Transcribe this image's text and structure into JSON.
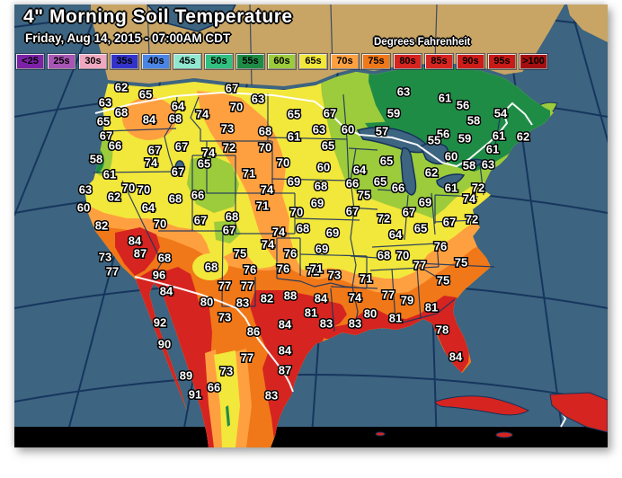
{
  "header": {
    "title": "4\" Morning Soil Temperature",
    "date": "Friday, Aug 14, 2015 - 07:00AM CDT",
    "unit_label": "Degrees Fahrenheit"
  },
  "legend": {
    "items": [
      {
        "label": "<25",
        "color": "#7D22A8"
      },
      {
        "label": "25s",
        "color": "#A855B5"
      },
      {
        "label": "30s",
        "color": "#F0A8C0"
      },
      {
        "label": "35s",
        "color": "#3333CC"
      },
      {
        "label": "40s",
        "color": "#4A85E6"
      },
      {
        "label": "45s",
        "color": "#90E8D0"
      },
      {
        "label": "50s",
        "color": "#30C080"
      },
      {
        "label": "55s",
        "color": "#1F8C46"
      },
      {
        "label": "60s",
        "color": "#9CCB3B"
      },
      {
        "label": "65s",
        "color": "#F2E73B"
      },
      {
        "label": "70s",
        "color": "#FFA040"
      },
      {
        "label": "75s",
        "color": "#F07818"
      },
      {
        "label": "80s",
        "color": "#D62420"
      },
      {
        "label": "85s",
        "color": "#D62420"
      },
      {
        "label": "90s",
        "color": "#CE1D19"
      },
      {
        "label": "95s",
        "color": "#C81A16"
      },
      {
        "label": ">100",
        "color": "#A50F0F"
      }
    ]
  },
  "colors": {
    "ocean": "#3D6480",
    "graticule": "#16365E",
    "edge_black": "#000000",
    "land_no_data": "#C8A565",
    "state_border": "#1B3460",
    "national_border": "#FFFFFF",
    "lake_outline": "#14325A",
    "band_55s": "#1F8C46",
    "band_60s": "#9CCB3B",
    "band_65s": "#F2E73B",
    "band_70s": "#FFA040",
    "band_75s": "#F07818",
    "band_80s": "#D62420"
  },
  "chart_data": {
    "type": "map-stations",
    "title": "4\" Morning Soil Temperature",
    "units": "Degrees Fahrenheit",
    "stations_t_x_y": [
      [
        62,
        119,
        93
      ],
      [
        65,
        146,
        101
      ],
      [
        63,
        101,
        110
      ],
      [
        68,
        119,
        121
      ],
      [
        84,
        150,
        129
      ],
      [
        65,
        99,
        131
      ],
      [
        67,
        102,
        147
      ],
      [
        66,
        112,
        158
      ],
      [
        58,
        91,
        173
      ],
      [
        61,
        106,
        190
      ],
      [
        63,
        79,
        207
      ],
      [
        60,
        77,
        227
      ],
      [
        70,
        127,
        205
      ],
      [
        70,
        144,
        207
      ],
      [
        62,
        111,
        215
      ],
      [
        82,
        97,
        247
      ],
      [
        64,
        149,
        227
      ],
      [
        66,
        204,
        213
      ],
      [
        68,
        179,
        217
      ],
      [
        74,
        152,
        177
      ],
      [
        67,
        156,
        163
      ],
      [
        67,
        186,
        159
      ],
      [
        67,
        182,
        187
      ],
      [
        65,
        211,
        178
      ],
      [
        84,
        134,
        264
      ],
      [
        87,
        140,
        278
      ],
      [
        73,
        101,
        282
      ],
      [
        77,
        109,
        298
      ],
      [
        68,
        167,
        283
      ],
      [
        96,
        161,
        302
      ],
      [
        84,
        169,
        320
      ],
      [
        92,
        162,
        355
      ],
      [
        90,
        167,
        379
      ],
      [
        89,
        191,
        414
      ],
      [
        91,
        201,
        435
      ],
      [
        70,
        162,
        245
      ],
      [
        67,
        242,
        94
      ],
      [
        63,
        271,
        106
      ],
      [
        64,
        182,
        114
      ],
      [
        70,
        247,
        115
      ],
      [
        74,
        209,
        123
      ],
      [
        68,
        179,
        128
      ],
      [
        73,
        237,
        139
      ],
      [
        68,
        279,
        142
      ],
      [
        72,
        239,
        160
      ],
      [
        74,
        216,
        166
      ],
      [
        70,
        279,
        160
      ],
      [
        71,
        261,
        189
      ],
      [
        74,
        281,
        207
      ],
      [
        71,
        276,
        225
      ],
      [
        70,
        314,
        232
      ],
      [
        68,
        242,
        237
      ],
      [
        67,
        207,
        241
      ],
      [
        67,
        239,
        252
      ],
      [
        74,
        294,
        254
      ],
      [
        74,
        282,
        268
      ],
      [
        68,
        321,
        250
      ],
      [
        69,
        354,
        255
      ],
      [
        69,
        342,
        273
      ],
      [
        75,
        251,
        278
      ],
      [
        76,
        307,
        278
      ],
      [
        68,
        219,
        293
      ],
      [
        65,
        311,
        123
      ],
      [
        67,
        351,
        122
      ],
      [
        63,
        339,
        140
      ],
      [
        60,
        371,
        140
      ],
      [
        61,
        311,
        148
      ],
      [
        63,
        433,
        98
      ],
      [
        59,
        422,
        122
      ],
      [
        57,
        409,
        142
      ],
      [
        65,
        349,
        158
      ],
      [
        70,
        299,
        177
      ],
      [
        60,
        344,
        182
      ],
      [
        64,
        384,
        185
      ],
      [
        65,
        414,
        175
      ],
      [
        66,
        376,
        200
      ],
      [
        65,
        407,
        198
      ],
      [
        66,
        427,
        205
      ],
      [
        75,
        389,
        213
      ],
      [
        69,
        311,
        198
      ],
      [
        68,
        341,
        203
      ],
      [
        69,
        337,
        222
      ],
      [
        67,
        376,
        231
      ],
      [
        67,
        439,
        232
      ],
      [
        62,
        464,
        188
      ],
      [
        60,
        486,
        170
      ],
      [
        69,
        457,
        221
      ],
      [
        72,
        411,
        239
      ],
      [
        64,
        424,
        257
      ],
      [
        65,
        452,
        250
      ],
      [
        68,
        411,
        280
      ],
      [
        70,
        432,
        280
      ],
      [
        71,
        391,
        306
      ],
      [
        73,
        356,
        302
      ],
      [
        71,
        332,
        298
      ],
      [
        77,
        234,
        314
      ],
      [
        77,
        259,
        314
      ],
      [
        61,
        479,
        105
      ],
      [
        56,
        499,
        113
      ],
      [
        58,
        511,
        130
      ],
      [
        54,
        541,
        122
      ],
      [
        56,
        477,
        145
      ],
      [
        55,
        467,
        152
      ],
      [
        59,
        501,
        150
      ],
      [
        61,
        539,
        147
      ],
      [
        62,
        566,
        148
      ],
      [
        61,
        532,
        162
      ],
      [
        58,
        506,
        180
      ],
      [
        63,
        527,
        179
      ],
      [
        61,
        486,
        205
      ],
      [
        72,
        516,
        205
      ],
      [
        74,
        506,
        217
      ],
      [
        67,
        484,
        243
      ],
      [
        72,
        509,
        240
      ],
      [
        76,
        474,
        270
      ],
      [
        75,
        497,
        288
      ],
      [
        77,
        451,
        291
      ],
      [
        76,
        262,
        296
      ],
      [
        76,
        299,
        295
      ],
      [
        71,
        336,
        295
      ],
      [
        88,
        307,
        325
      ],
      [
        82,
        281,
        328
      ],
      [
        84,
        341,
        328
      ],
      [
        83,
        254,
        333
      ],
      [
        81,
        330,
        344
      ],
      [
        73,
        234,
        349
      ],
      [
        84,
        301,
        357
      ],
      [
        83,
        347,
        356
      ],
      [
        83,
        379,
        356
      ],
      [
        86,
        266,
        365
      ],
      [
        84,
        301,
        386
      ],
      [
        87,
        301,
        408
      ],
      [
        77,
        259,
        394
      ],
      [
        80,
        214,
        332
      ],
      [
        80,
        396,
        345
      ],
      [
        81,
        424,
        350
      ],
      [
        74,
        379,
        327
      ],
      [
        79,
        437,
        330
      ],
      [
        81,
        464,
        338
      ],
      [
        78,
        476,
        363
      ],
      [
        84,
        491,
        393
      ],
      [
        75,
        477,
        308
      ],
      [
        77,
        416,
        324
      ],
      [
        73,
        236,
        409
      ],
      [
        66,
        222,
        427
      ],
      [
        83,
        286,
        436
      ]
    ]
  }
}
